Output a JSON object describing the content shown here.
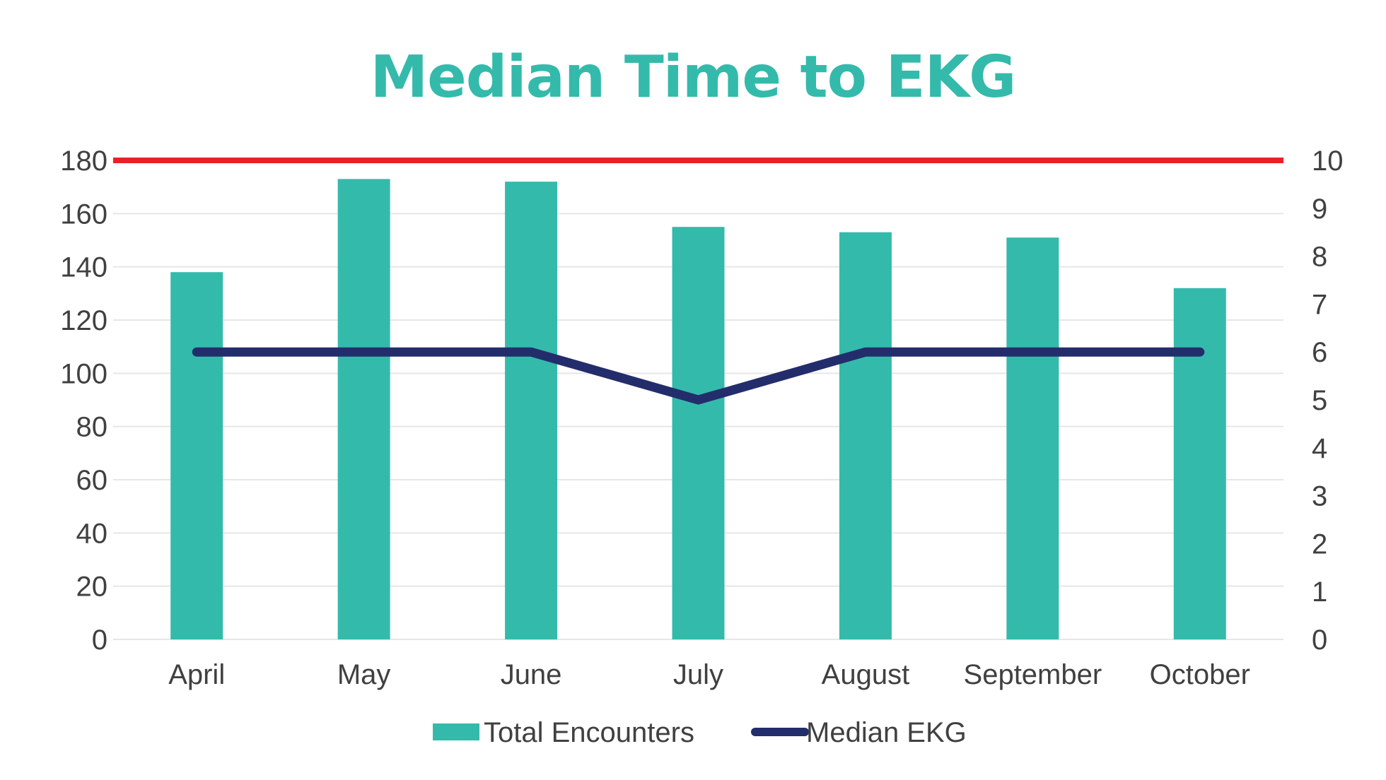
{
  "chart_data": {
    "type": "bar",
    "title": "Median Time to EKG",
    "categories": [
      "April",
      "May",
      "June",
      "July",
      "August",
      "September",
      "October"
    ],
    "series": [
      {
        "name": "Total Encounters",
        "type": "bar",
        "axis": "left",
        "color": "#34BAAB",
        "values": [
          138,
          173,
          172,
          155,
          153,
          151,
          132
        ]
      },
      {
        "name": "Median EKG",
        "type": "line",
        "axis": "right",
        "color": "#232D6B",
        "values": [
          6,
          6,
          6,
          5,
          6,
          6,
          6
        ]
      }
    ],
    "reference_line": {
      "axis": "left",
      "value": 180,
      "color": "#E8202A"
    },
    "y_left": {
      "min": 0,
      "max": 180,
      "ticks": [
        0,
        20,
        40,
        60,
        80,
        100,
        120,
        140,
        160,
        180
      ]
    },
    "y_right": {
      "min": 0,
      "max": 10,
      "ticks": [
        0,
        1,
        2,
        3,
        4,
        5,
        6,
        7,
        8,
        9,
        10
      ]
    },
    "grid": true,
    "legend": "bottom",
    "title_color": "#34BAAB"
  }
}
